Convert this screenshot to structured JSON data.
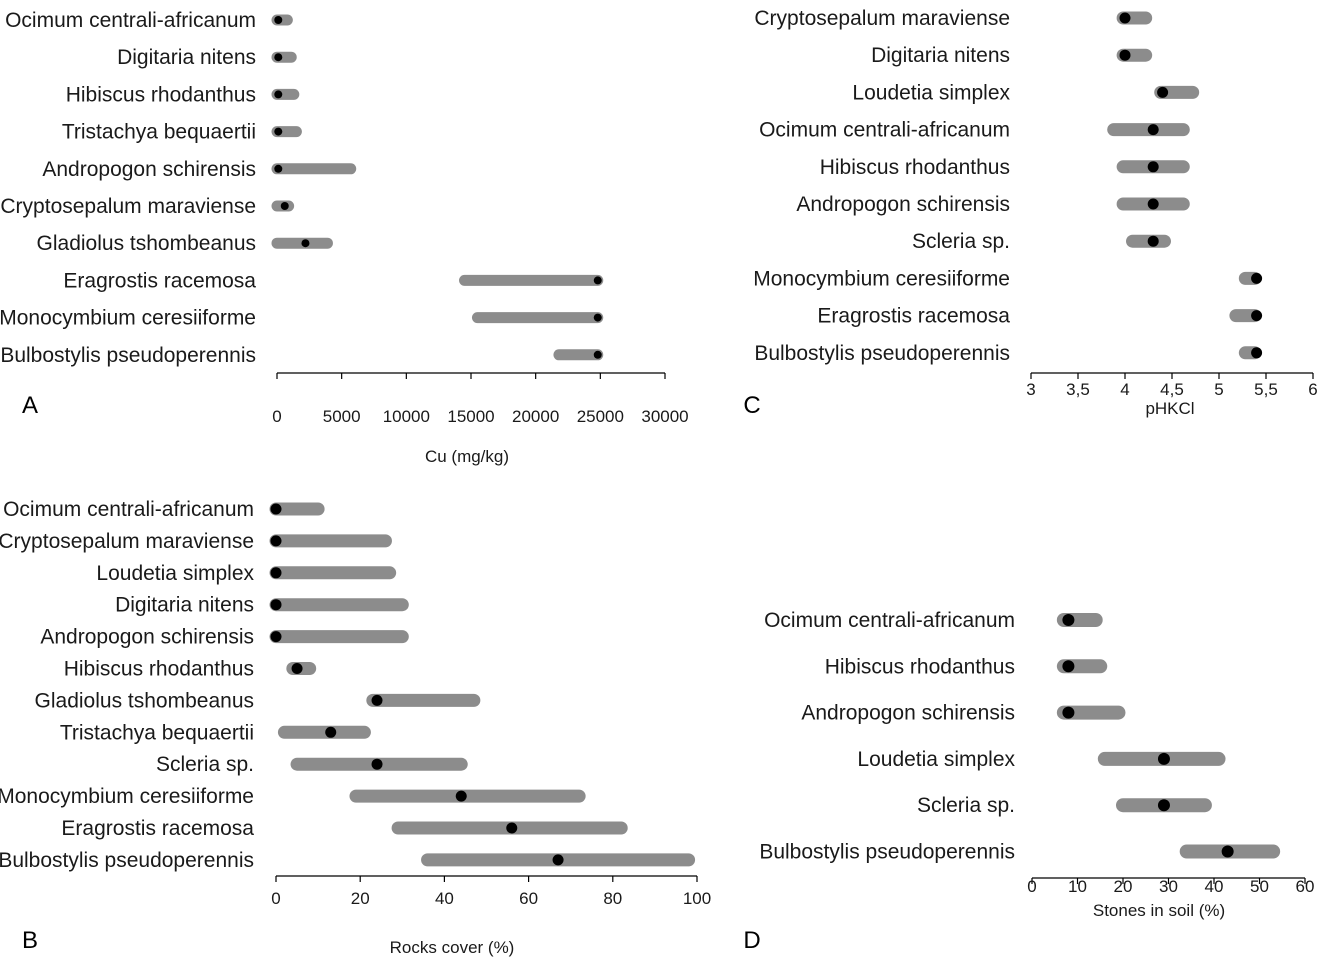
{
  "colors": {
    "bar": "#8c8c8c",
    "dot": "#000000",
    "axis": "#000000",
    "text": "#1a1a1a"
  },
  "chart_data": [
    {
      "type": "range-dot",
      "panel": "A",
      "xlabel": "Cu (mg/kg)",
      "xlim": [
        0,
        30000
      ],
      "xticks": [
        0,
        5000,
        10000,
        15000,
        20000,
        25000,
        30000
      ],
      "xtick_labels": [
        "0",
        "5000",
        "10000",
        "15000",
        "20000",
        "25000",
        "30000"
      ],
      "categories": [
        "Ocimum centrali-africanum",
        "Digitaria nitens",
        "Hibiscus rhodanthus",
        "Tristachya bequaertii",
        "Andropogon schirensis",
        "Cryptosepalum maraviense",
        "Gladiolus tshombeanus",
        "Eragrostis racemosa",
        "Monocymbium ceresiiforme",
        "Bulbostylis pseudoperennis"
      ],
      "min": [
        0,
        0,
        0,
        0,
        0,
        0,
        0,
        14500,
        15500,
        21800
      ],
      "max": [
        800,
        1100,
        1300,
        1500,
        5700,
        900,
        3900,
        24800,
        24800,
        24800
      ],
      "median": [
        100,
        100,
        100,
        100,
        100,
        600,
        2200,
        24800,
        24800,
        24800
      ]
    },
    {
      "type": "range-dot",
      "panel": "B",
      "xlabel": "Rocks cover (%)",
      "xlim": [
        0,
        100
      ],
      "xticks": [
        0,
        20,
        40,
        60,
        80,
        100
      ],
      "xtick_labels": [
        "0",
        "20",
        "40",
        "60",
        "80",
        "100"
      ],
      "categories": [
        "Ocimum centrali-africanum",
        "Cryptosepalum maraviense",
        "Loudetia simplex",
        "Digitaria nitens",
        "Andropogon schirensis",
        "Hibiscus rhodanthus",
        "Gladiolus tshombeanus",
        "Tristachya bequaertii",
        "Scleria sp.",
        "Monocymbium ceresiiforme",
        "Eragrostis racemosa",
        "Bulbostylis pseudoperennis"
      ],
      "min": [
        0,
        0,
        0,
        0,
        0,
        4,
        23,
        2,
        5,
        19,
        29,
        36
      ],
      "max": [
        10,
        26,
        27,
        30,
        30,
        8,
        47,
        21,
        44,
        72,
        82,
        98
      ],
      "median": [
        0,
        0,
        0,
        0,
        0,
        5,
        24,
        13,
        24,
        44,
        56,
        67
      ]
    },
    {
      "type": "range-dot",
      "panel": "C",
      "xlabel": "pHKCl",
      "xlim": [
        3,
        6
      ],
      "xticks": [
        3,
        3.5,
        4,
        4.5,
        5,
        5.5,
        6
      ],
      "xtick_labels": [
        "3",
        "3,5",
        "4",
        "4,5",
        "5",
        "5,5",
        "6"
      ],
      "categories": [
        "Cryptosepalum maraviense",
        "Digitaria nitens",
        "Loudetia simplex",
        "Ocimum centrali-africanum",
        "Hibiscus rhodanthus",
        "Andropogon schirensis",
        "Scleria sp.",
        "Monocymbium ceresiiforme",
        "Eragrostis racemosa",
        "Bulbostylis pseudoperennis"
      ],
      "min": [
        3.98,
        3.98,
        4.38,
        3.88,
        3.98,
        3.98,
        4.08,
        5.28,
        5.18,
        5.28
      ],
      "max": [
        4.22,
        4.22,
        4.72,
        4.62,
        4.62,
        4.62,
        4.42,
        5.38,
        5.38,
        5.38
      ],
      "median": [
        4.0,
        4.0,
        4.4,
        4.3,
        4.3,
        4.3,
        4.3,
        5.4,
        5.4,
        5.4
      ]
    },
    {
      "type": "range-dot",
      "panel": "D",
      "xlabel": "Stones in soil (%)",
      "xlim": [
        0,
        60
      ],
      "xticks": [
        0,
        10,
        20,
        30,
        40,
        50,
        60
      ],
      "xtick_labels": [
        "0",
        "10",
        "20",
        "30",
        "40",
        "50",
        "60"
      ],
      "categories": [
        "Ocimum centrali-africanum",
        "Hibiscus rhodanthus",
        "Andropogon schirensis",
        "Loudetia simplex",
        "Scleria sp.",
        "Bulbostylis pseudoperennis"
      ],
      "min": [
        7,
        7,
        7,
        16,
        20,
        34
      ],
      "max": [
        14,
        15,
        19,
        41,
        38,
        53
      ],
      "median": [
        8,
        8,
        8,
        29,
        29,
        43
      ]
    }
  ]
}
